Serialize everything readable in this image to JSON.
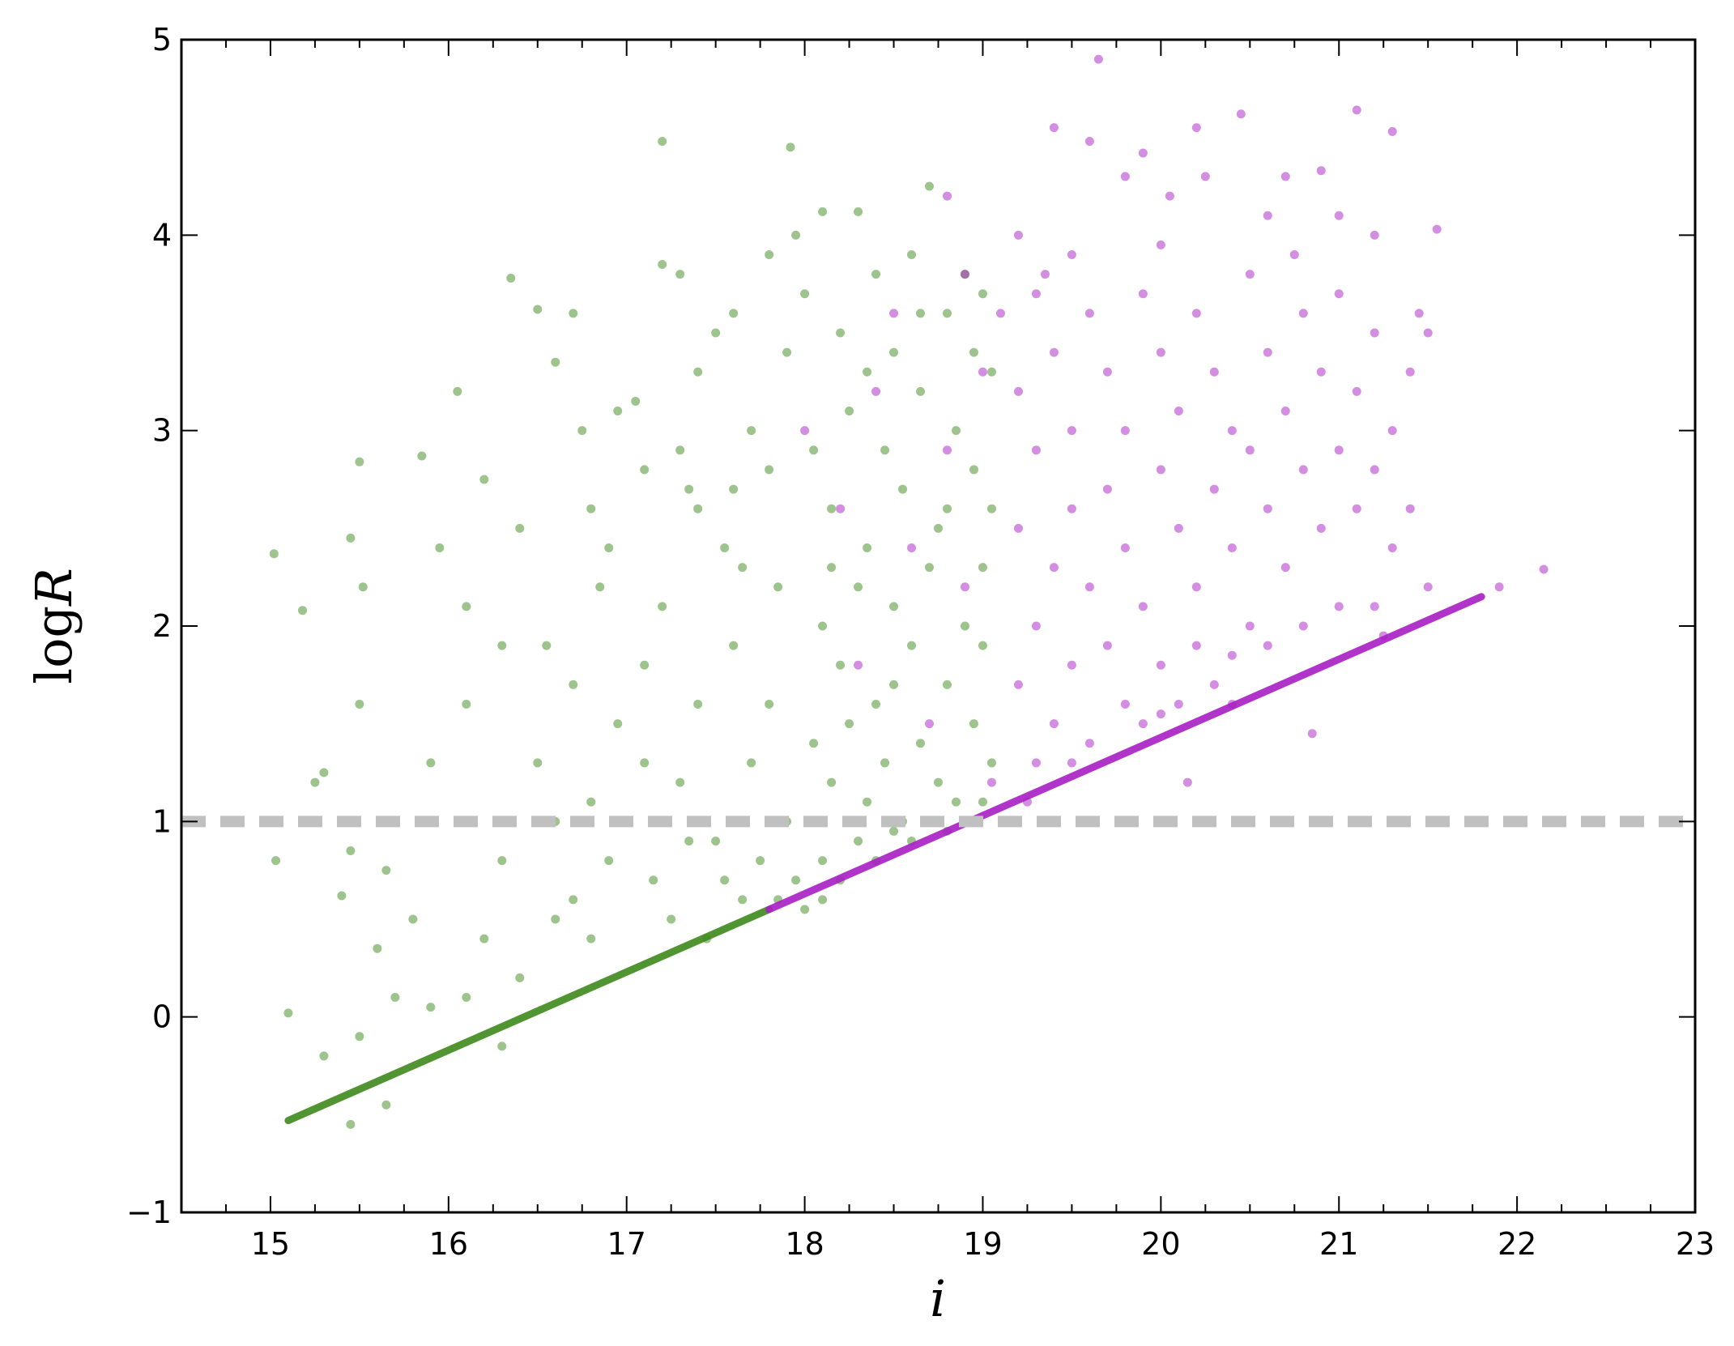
{
  "chart_data": {
    "type": "scatter",
    "xlabel": "i",
    "ylabel_prefix": "log",
    "ylabel_var": "R",
    "xlim": [
      14.5,
      23
    ],
    "ylim": [
      -1,
      5
    ],
    "xticks": [
      "15",
      "16",
      "17",
      "18",
      "19",
      "20",
      "21",
      "22",
      "23"
    ],
    "yticks": [
      "−1",
      "0",
      "1",
      "2",
      "3",
      "4",
      "5"
    ],
    "grid": false,
    "reference_line": {
      "y": 1,
      "style": "dashed",
      "color": "#c0c0c0"
    },
    "series": [
      {
        "color": "#3d8a1c",
        "line": {
          "x": [
            15.1,
            17.8
          ],
          "y": [
            -0.53,
            0.55
          ]
        },
        "points": [
          [
            15.02,
            2.37
          ],
          [
            15.03,
            0.8
          ],
          [
            15.1,
            0.02
          ],
          [
            15.18,
            2.08
          ],
          [
            15.3,
            1.25
          ],
          [
            15.25,
            1.2
          ],
          [
            15.45,
            2.45
          ],
          [
            15.5,
            2.84
          ],
          [
            15.52,
            2.2
          ],
          [
            15.5,
            1.6
          ],
          [
            15.45,
            0.85
          ],
          [
            15.4,
            0.62
          ],
          [
            15.6,
            0.35
          ],
          [
            15.65,
            0.75
          ],
          [
            15.85,
            2.87
          ],
          [
            15.9,
            1.3
          ],
          [
            15.95,
            2.4
          ],
          [
            15.8,
            0.5
          ],
          [
            15.3,
            -0.2
          ],
          [
            15.5,
            -0.1
          ],
          [
            15.7,
            0.1
          ],
          [
            15.9,
            0.05
          ],
          [
            15.45,
            -0.55
          ],
          [
            15.65,
            -0.45
          ],
          [
            16.05,
            3.2
          ],
          [
            16.1,
            2.1
          ],
          [
            16.2,
            2.75
          ],
          [
            16.1,
            1.6
          ],
          [
            16.3,
            1.9
          ],
          [
            16.35,
            3.78
          ],
          [
            16.4,
            2.5
          ],
          [
            16.5,
            3.62
          ],
          [
            16.55,
            1.9
          ],
          [
            16.6,
            3.35
          ],
          [
            16.7,
            3.6
          ],
          [
            16.75,
            3.0
          ],
          [
            16.8,
            2.6
          ],
          [
            16.85,
            2.2
          ],
          [
            16.9,
            2.4
          ],
          [
            16.5,
            1.3
          ],
          [
            16.6,
            1.0
          ],
          [
            16.3,
            0.8
          ],
          [
            16.2,
            0.4
          ],
          [
            16.7,
            1.7
          ],
          [
            16.8,
            1.1
          ],
          [
            16.9,
            0.8
          ],
          [
            16.95,
            3.1
          ],
          [
            16.4,
            0.2
          ],
          [
            16.6,
            0.5
          ],
          [
            16.8,
            0.4
          ],
          [
            16.1,
            0.1
          ],
          [
            16.3,
            -0.15
          ],
          [
            16.7,
            0.6
          ],
          [
            16.95,
            1.5
          ],
          [
            17.05,
            3.15
          ],
          [
            17.1,
            2.8
          ],
          [
            17.2,
            3.85
          ],
          [
            17.2,
            4.48
          ],
          [
            17.3,
            3.8
          ],
          [
            17.35,
            2.7
          ],
          [
            17.4,
            3.3
          ],
          [
            17.5,
            3.5
          ],
          [
            17.55,
            2.4
          ],
          [
            17.6,
            3.6
          ],
          [
            17.7,
            3.0
          ],
          [
            17.8,
            3.9
          ],
          [
            17.85,
            2.2
          ],
          [
            17.9,
            3.4
          ],
          [
            17.92,
            4.45
          ],
          [
            17.95,
            4.0
          ],
          [
            17.1,
            1.8
          ],
          [
            17.2,
            2.1
          ],
          [
            17.3,
            1.2
          ],
          [
            17.4,
            1.6
          ],
          [
            17.5,
            0.9
          ],
          [
            17.6,
            1.9
          ],
          [
            17.7,
            1.3
          ],
          [
            17.8,
            1.6
          ],
          [
            17.9,
            1.0
          ],
          [
            17.15,
            0.7
          ],
          [
            17.25,
            0.5
          ],
          [
            17.35,
            0.9
          ],
          [
            17.45,
            0.4
          ],
          [
            17.55,
            0.7
          ],
          [
            17.65,
            0.6
          ],
          [
            17.75,
            0.8
          ],
          [
            17.85,
            0.6
          ],
          [
            17.95,
            0.7
          ],
          [
            17.1,
            1.3
          ],
          [
            17.4,
            2.6
          ],
          [
            17.6,
            2.7
          ],
          [
            17.8,
            2.8
          ],
          [
            17.3,
            2.9
          ],
          [
            17.65,
            2.3
          ],
          [
            18.0,
            3.7
          ],
          [
            18.1,
            4.12
          ],
          [
            18.2,
            3.5
          ],
          [
            18.3,
            4.12
          ],
          [
            18.4,
            3.8
          ],
          [
            18.5,
            3.4
          ],
          [
            18.6,
            3.9
          ],
          [
            18.7,
            4.25
          ],
          [
            18.8,
            3.6
          ],
          [
            18.9,
            3.8
          ],
          [
            19.0,
            3.7
          ],
          [
            19.05,
            3.3
          ],
          [
            18.05,
            2.9
          ],
          [
            18.15,
            2.6
          ],
          [
            18.25,
            3.1
          ],
          [
            18.35,
            2.4
          ],
          [
            18.45,
            2.9
          ],
          [
            18.55,
            2.7
          ],
          [
            18.65,
            3.2
          ],
          [
            18.75,
            2.5
          ],
          [
            18.85,
            3.0
          ],
          [
            18.95,
            2.8
          ],
          [
            19.05,
            2.6
          ],
          [
            18.1,
            2.0
          ],
          [
            18.2,
            1.8
          ],
          [
            18.3,
            2.2
          ],
          [
            18.4,
            1.6
          ],
          [
            18.5,
            2.1
          ],
          [
            18.6,
            1.9
          ],
          [
            18.7,
            2.3
          ],
          [
            18.8,
            1.7
          ],
          [
            18.9,
            2.0
          ],
          [
            19.0,
            1.9
          ],
          [
            18.05,
            1.4
          ],
          [
            18.15,
            1.2
          ],
          [
            18.25,
            1.5
          ],
          [
            18.35,
            1.1
          ],
          [
            18.45,
            1.3
          ],
          [
            18.55,
            1.0
          ],
          [
            18.65,
            1.4
          ],
          [
            18.75,
            1.2
          ],
          [
            18.85,
            1.1
          ],
          [
            18.95,
            1.5
          ],
          [
            19.05,
            1.3
          ],
          [
            18.1,
            0.8
          ],
          [
            18.2,
            0.7
          ],
          [
            18.3,
            0.9
          ],
          [
            18.4,
            0.8
          ],
          [
            18.5,
            0.95
          ],
          [
            18.6,
            0.9
          ],
          [
            18.7,
            1.0
          ],
          [
            18.8,
            0.95
          ],
          [
            18.0,
            0.55
          ],
          [
            18.1,
            0.6
          ],
          [
            18.9,
            1.0
          ],
          [
            18.35,
            3.3
          ],
          [
            18.65,
            3.6
          ],
          [
            18.95,
            3.4
          ],
          [
            18.15,
            2.3
          ],
          [
            18.8,
            2.6
          ],
          [
            18.5,
            1.7
          ],
          [
            19.0,
            2.3
          ],
          [
            19.0,
            1.1
          ]
        ]
      },
      {
        "color": "#a81ec4",
        "line": {
          "x": [
            17.8,
            21.8
          ],
          "y": [
            0.55,
            2.15
          ]
        },
        "points": [
          [
            18.0,
            3.0
          ],
          [
            18.2,
            2.6
          ],
          [
            18.4,
            3.2
          ],
          [
            18.6,
            2.4
          ],
          [
            18.8,
            2.9
          ],
          [
            19.0,
            3.3
          ],
          [
            18.3,
            1.8
          ],
          [
            18.7,
            1.5
          ],
          [
            18.9,
            2.2
          ],
          [
            19.05,
            1.2
          ],
          [
            18.5,
            3.6
          ],
          [
            18.9,
            3.8
          ],
          [
            18.8,
            4.2
          ],
          [
            19.1,
            3.6
          ],
          [
            19.2,
            4.0
          ],
          [
            19.3,
            3.7
          ],
          [
            19.4,
            4.55
          ],
          [
            19.5,
            3.9
          ],
          [
            19.6,
            4.48
          ],
          [
            19.65,
            4.9
          ],
          [
            19.8,
            4.3
          ],
          [
            19.9,
            4.42
          ],
          [
            20.0,
            3.95
          ],
          [
            20.2,
            4.55
          ],
          [
            20.25,
            4.3
          ],
          [
            20.45,
            4.62
          ],
          [
            20.6,
            4.1
          ],
          [
            20.7,
            4.3
          ],
          [
            20.9,
            4.33
          ],
          [
            21.0,
            4.1
          ],
          [
            21.1,
            4.64
          ],
          [
            21.2,
            4.0
          ],
          [
            21.3,
            4.53
          ],
          [
            21.55,
            4.03
          ],
          [
            21.45,
            3.6
          ],
          [
            19.2,
            3.2
          ],
          [
            19.2,
            2.5
          ],
          [
            19.2,
            1.7
          ],
          [
            19.3,
            2.9
          ],
          [
            19.3,
            2.0
          ],
          [
            19.3,
            1.3
          ],
          [
            19.4,
            3.4
          ],
          [
            19.4,
            2.3
          ],
          [
            19.4,
            1.5
          ],
          [
            19.5,
            3.0
          ],
          [
            19.5,
            2.6
          ],
          [
            19.5,
            1.8
          ],
          [
            19.6,
            3.6
          ],
          [
            19.6,
            2.2
          ],
          [
            19.6,
            1.4
          ],
          [
            19.7,
            3.3
          ],
          [
            19.7,
            2.7
          ],
          [
            19.7,
            1.9
          ],
          [
            19.8,
            3.0
          ],
          [
            19.8,
            2.4
          ],
          [
            19.8,
            1.6
          ],
          [
            19.9,
            3.7
          ],
          [
            19.9,
            2.1
          ],
          [
            19.9,
            1.5
          ],
          [
            20.0,
            3.4
          ],
          [
            20.0,
            2.8
          ],
          [
            20.0,
            1.8
          ],
          [
            20.1,
            3.1
          ],
          [
            20.1,
            2.5
          ],
          [
            20.1,
            1.6
          ],
          [
            20.2,
            3.6
          ],
          [
            20.2,
            2.2
          ],
          [
            20.2,
            1.9
          ],
          [
            20.3,
            3.3
          ],
          [
            20.3,
            2.7
          ],
          [
            20.3,
            1.7
          ],
          [
            20.4,
            3.0
          ],
          [
            20.4,
            2.4
          ],
          [
            20.4,
            1.85
          ],
          [
            20.5,
            3.8
          ],
          [
            20.5,
            2.9
          ],
          [
            20.5,
            2.0
          ],
          [
            20.6,
            3.4
          ],
          [
            20.6,
            2.6
          ],
          [
            20.6,
            1.9
          ],
          [
            20.7,
            3.1
          ],
          [
            20.7,
            2.3
          ],
          [
            20.8,
            3.6
          ],
          [
            20.8,
            2.8
          ],
          [
            20.8,
            2.0
          ],
          [
            20.9,
            3.3
          ],
          [
            20.9,
            2.5
          ],
          [
            21.0,
            3.7
          ],
          [
            21.0,
            2.9
          ],
          [
            21.0,
            2.1
          ],
          [
            21.1,
            3.2
          ],
          [
            21.1,
            2.6
          ],
          [
            21.2,
            3.5
          ],
          [
            21.2,
            2.8
          ],
          [
            21.2,
            2.1
          ],
          [
            21.3,
            3.0
          ],
          [
            21.3,
            2.4
          ],
          [
            21.4,
            3.3
          ],
          [
            21.4,
            2.6
          ],
          [
            21.5,
            3.5
          ],
          [
            21.5,
            2.2
          ],
          [
            19.25,
            1.1
          ],
          [
            19.5,
            1.3
          ],
          [
            20.0,
            1.55
          ],
          [
            20.4,
            1.6
          ],
          [
            20.85,
            1.45
          ],
          [
            21.25,
            1.95
          ],
          [
            20.15,
            1.2
          ],
          [
            19.35,
            3.8
          ],
          [
            20.05,
            4.2
          ],
          [
            20.75,
            3.9
          ],
          [
            21.9,
            2.2
          ],
          [
            22.15,
            2.29
          ]
        ]
      }
    ]
  }
}
